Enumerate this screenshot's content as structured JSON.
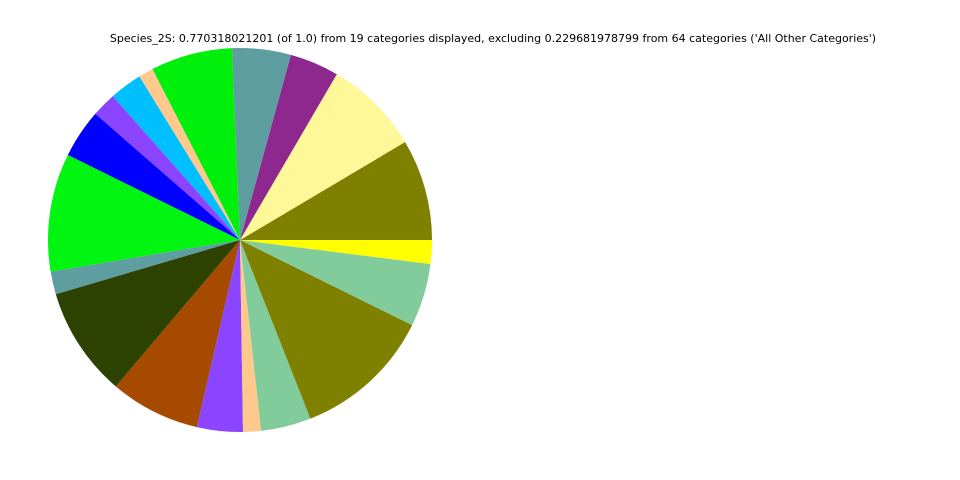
{
  "chart_data": {
    "type": "pie",
    "title": "Species_2S: 0.770318021201 (of 1.0) from 19 categories displayed, excluding 0.229681978799 from 64 categories ('All Other Categories')",
    "values": [
      0.0657,
      0.0621,
      0.0319,
      0.0381,
      0.0529,
      0.0096,
      0.0212,
      0.0158,
      0.0317,
      0.0766,
      0.0148,
      0.0713,
      0.0584,
      0.0297,
      0.0116,
      0.0325,
      0.0903,
      0.0409,
      0.0154
    ],
    "colors": [
      "#808000",
      "#fff899",
      "#8e278e",
      "#5f9ea0",
      "#00f00c",
      "#ffc88c",
      "#00bfff",
      "#8c45ff",
      "#0000ff",
      "#00f510",
      "#5f9ea0",
      "#2d4200",
      "#a64a00",
      "#8c45ff",
      "#ffc88c",
      "#82cc9c",
      "#808000",
      "#82cc9c",
      "#ffff00"
    ]
  }
}
